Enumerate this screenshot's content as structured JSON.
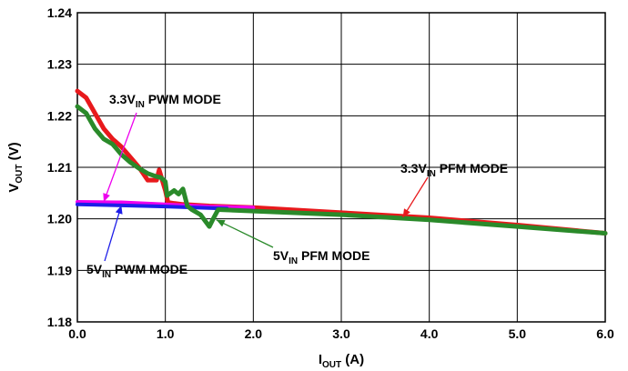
{
  "chart_data": {
    "type": "line",
    "title": "",
    "xlabel": {
      "main": "I",
      "sub": "OUT",
      "tail": " (A)"
    },
    "ylabel": {
      "main": "V",
      "sub": "OUT",
      "tail": " (V)"
    },
    "xlim": [
      0,
      6
    ],
    "ylim": [
      1.18,
      1.24
    ],
    "x_ticks": [
      0,
      1,
      2,
      3,
      4,
      5,
      6
    ],
    "x_tick_labels": [
      "0.0",
      "1.0",
      "2.0",
      "3.0",
      "4.0",
      "5.0",
      "6.0"
    ],
    "y_ticks": [
      1.18,
      1.19,
      1.2,
      1.21,
      1.22,
      1.23,
      1.24
    ],
    "y_tick_labels": [
      "1.18",
      "1.19",
      "1.20",
      "1.21",
      "1.22",
      "1.23",
      "1.24"
    ],
    "grid": true,
    "legend": "none",
    "series": [
      {
        "color": "#e8191c",
        "x": [
          0,
          0.1,
          0.2,
          0.3,
          0.4,
          0.5,
          0.6,
          0.7,
          0.8,
          0.9,
          0.93,
          0.97,
          1.0,
          1.03,
          1.1,
          1.2,
          1.5,
          2.0,
          3.0,
          4.0,
          5.0,
          6.0
        ],
        "y": [
          1.2248,
          1.2235,
          1.2205,
          1.2175,
          1.2155,
          1.214,
          1.212,
          1.21,
          1.2075,
          1.2075,
          1.2095,
          1.2072,
          1.2055,
          1.2032,
          1.203,
          1.2028,
          1.2025,
          1.2022,
          1.2012,
          1.2002,
          1.1988,
          1.1972
        ]
      },
      {
        "color": "#ee00ee",
        "x": [
          0,
          0.5,
          1.0,
          1.5,
          2.0
        ],
        "y": [
          1.2033,
          1.2032,
          1.2028,
          1.2024,
          1.2022
        ]
      },
      {
        "color": "#1d1de8",
        "x": [
          0,
          0.5,
          1.0,
          1.5,
          1.7
        ],
        "y": [
          1.2028,
          1.2026,
          1.2024,
          1.2021,
          1.202
        ]
      },
      {
        "color": "#2a8a2a",
        "x": [
          0,
          0.1,
          0.2,
          0.3,
          0.4,
          0.5,
          0.6,
          0.7,
          0.8,
          0.9,
          0.95,
          1.0,
          1.02,
          1.1,
          1.15,
          1.2,
          1.25,
          1.3,
          1.4,
          1.5,
          1.55,
          1.6,
          2.0,
          3.0,
          4.0,
          5.0,
          6.0
        ],
        "y": [
          1.2218,
          1.2205,
          1.2175,
          1.2155,
          1.2145,
          1.2125,
          1.211,
          1.2098,
          1.2088,
          1.2082,
          1.208,
          1.2072,
          1.2045,
          1.2055,
          1.2048,
          1.2058,
          1.2025,
          1.2018,
          1.2008,
          1.1985,
          1.2002,
          1.2018,
          1.2015,
          1.2008,
          1.1998,
          1.1985,
          1.1972
        ]
      }
    ],
    "annotations": [
      {
        "main": "3.3V",
        "sub": "IN",
        "tail": " PWM MODE",
        "color": "#ee00ee",
        "point": [
          0.3,
          1.2033
        ]
      },
      {
        "main": "3.3V",
        "sub": "IN",
        "tail": " PFM MODE",
        "color": "#e8191c",
        "point": [
          3.7,
          1.2003
        ]
      },
      {
        "main": "5V",
        "sub": "IN",
        "tail": " PFM MODE",
        "color": "#2a8a2a",
        "point": [
          1.58,
          1.1998
        ]
      },
      {
        "main": "5V",
        "sub": "IN",
        "tail": " PWM MODE",
        "color": "#1d1de8",
        "point": [
          0.5,
          1.2026
        ]
      }
    ]
  }
}
